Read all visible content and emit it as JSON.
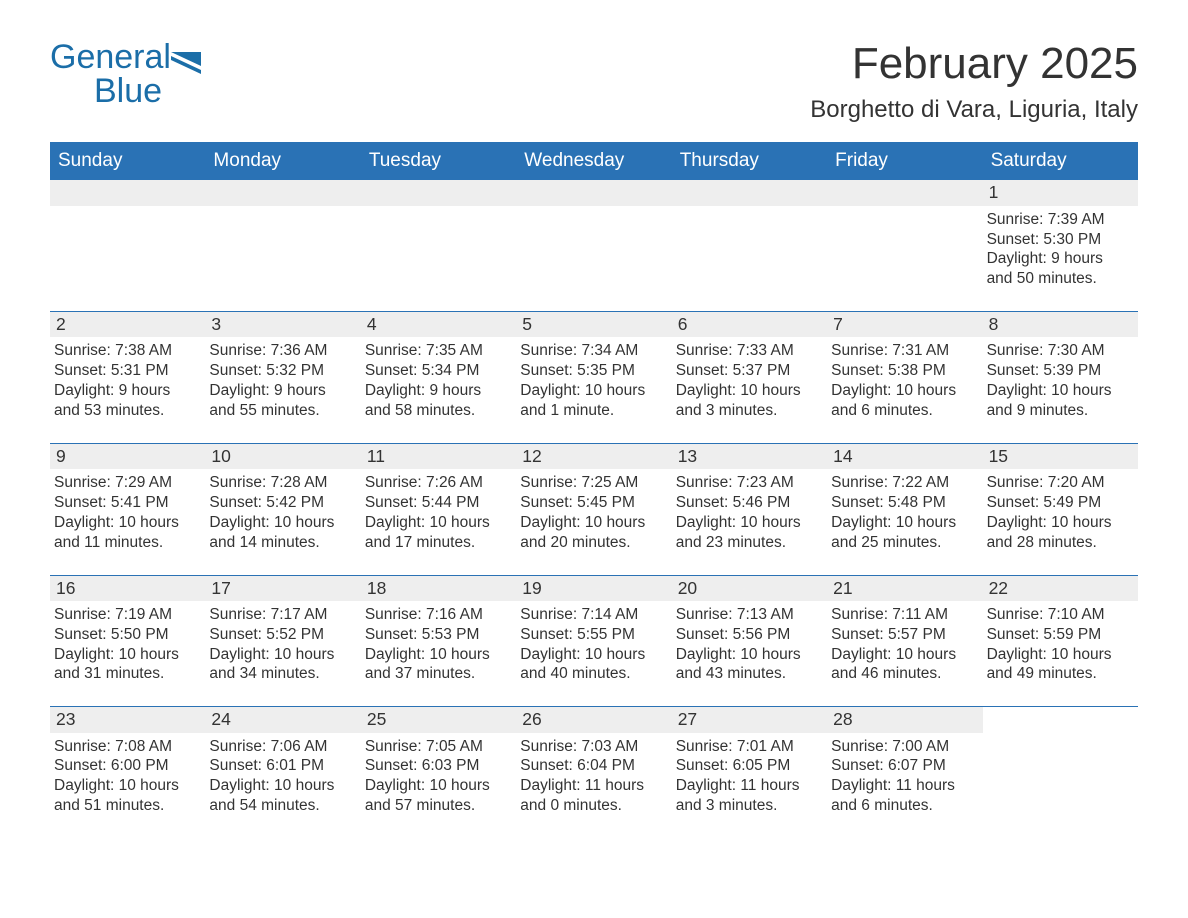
{
  "logo": {
    "text1": "General",
    "text2": "Blue",
    "accent_color": "#1b6ea8"
  },
  "title": "February 2025",
  "location": "Borghetto di Vara, Liguria, Italy",
  "colors": {
    "header_bg": "#2a72b5",
    "header_text": "#ffffff",
    "row_border": "#2a72b5",
    "daynum_bg": "#eeeeee",
    "body_text": "#333333",
    "page_bg": "#ffffff"
  },
  "weekdays": [
    "Sunday",
    "Monday",
    "Tuesday",
    "Wednesday",
    "Thursday",
    "Friday",
    "Saturday"
  ],
  "weeks": [
    [
      {
        "empty": true
      },
      {
        "empty": true
      },
      {
        "empty": true
      },
      {
        "empty": true
      },
      {
        "empty": true
      },
      {
        "empty": true
      },
      {
        "num": "1",
        "sunrise": "Sunrise: 7:39 AM",
        "sunset": "Sunset: 5:30 PM",
        "daylight": "Daylight: 9 hours and 50 minutes."
      }
    ],
    [
      {
        "num": "2",
        "sunrise": "Sunrise: 7:38 AM",
        "sunset": "Sunset: 5:31 PM",
        "daylight": "Daylight: 9 hours and 53 minutes."
      },
      {
        "num": "3",
        "sunrise": "Sunrise: 7:36 AM",
        "sunset": "Sunset: 5:32 PM",
        "daylight": "Daylight: 9 hours and 55 minutes."
      },
      {
        "num": "4",
        "sunrise": "Sunrise: 7:35 AM",
        "sunset": "Sunset: 5:34 PM",
        "daylight": "Daylight: 9 hours and 58 minutes."
      },
      {
        "num": "5",
        "sunrise": "Sunrise: 7:34 AM",
        "sunset": "Sunset: 5:35 PM",
        "daylight": "Daylight: 10 hours and 1 minute."
      },
      {
        "num": "6",
        "sunrise": "Sunrise: 7:33 AM",
        "sunset": "Sunset: 5:37 PM",
        "daylight": "Daylight: 10 hours and 3 minutes."
      },
      {
        "num": "7",
        "sunrise": "Sunrise: 7:31 AM",
        "sunset": "Sunset: 5:38 PM",
        "daylight": "Daylight: 10 hours and 6 minutes."
      },
      {
        "num": "8",
        "sunrise": "Sunrise: 7:30 AM",
        "sunset": "Sunset: 5:39 PM",
        "daylight": "Daylight: 10 hours and 9 minutes."
      }
    ],
    [
      {
        "num": "9",
        "sunrise": "Sunrise: 7:29 AM",
        "sunset": "Sunset: 5:41 PM",
        "daylight": "Daylight: 10 hours and 11 minutes."
      },
      {
        "num": "10",
        "sunrise": "Sunrise: 7:28 AM",
        "sunset": "Sunset: 5:42 PM",
        "daylight": "Daylight: 10 hours and 14 minutes."
      },
      {
        "num": "11",
        "sunrise": "Sunrise: 7:26 AM",
        "sunset": "Sunset: 5:44 PM",
        "daylight": "Daylight: 10 hours and 17 minutes."
      },
      {
        "num": "12",
        "sunrise": "Sunrise: 7:25 AM",
        "sunset": "Sunset: 5:45 PM",
        "daylight": "Daylight: 10 hours and 20 minutes."
      },
      {
        "num": "13",
        "sunrise": "Sunrise: 7:23 AM",
        "sunset": "Sunset: 5:46 PM",
        "daylight": "Daylight: 10 hours and 23 minutes."
      },
      {
        "num": "14",
        "sunrise": "Sunrise: 7:22 AM",
        "sunset": "Sunset: 5:48 PM",
        "daylight": "Daylight: 10 hours and 25 minutes."
      },
      {
        "num": "15",
        "sunrise": "Sunrise: 7:20 AM",
        "sunset": "Sunset: 5:49 PM",
        "daylight": "Daylight: 10 hours and 28 minutes."
      }
    ],
    [
      {
        "num": "16",
        "sunrise": "Sunrise: 7:19 AM",
        "sunset": "Sunset: 5:50 PM",
        "daylight": "Daylight: 10 hours and 31 minutes."
      },
      {
        "num": "17",
        "sunrise": "Sunrise: 7:17 AM",
        "sunset": "Sunset: 5:52 PM",
        "daylight": "Daylight: 10 hours and 34 minutes."
      },
      {
        "num": "18",
        "sunrise": "Sunrise: 7:16 AM",
        "sunset": "Sunset: 5:53 PM",
        "daylight": "Daylight: 10 hours and 37 minutes."
      },
      {
        "num": "19",
        "sunrise": "Sunrise: 7:14 AM",
        "sunset": "Sunset: 5:55 PM",
        "daylight": "Daylight: 10 hours and 40 minutes."
      },
      {
        "num": "20",
        "sunrise": "Sunrise: 7:13 AM",
        "sunset": "Sunset: 5:56 PM",
        "daylight": "Daylight: 10 hours and 43 minutes."
      },
      {
        "num": "21",
        "sunrise": "Sunrise: 7:11 AM",
        "sunset": "Sunset: 5:57 PM",
        "daylight": "Daylight: 10 hours and 46 minutes."
      },
      {
        "num": "22",
        "sunrise": "Sunrise: 7:10 AM",
        "sunset": "Sunset: 5:59 PM",
        "daylight": "Daylight: 10 hours and 49 minutes."
      }
    ],
    [
      {
        "num": "23",
        "sunrise": "Sunrise: 7:08 AM",
        "sunset": "Sunset: 6:00 PM",
        "daylight": "Daylight: 10 hours and 51 minutes."
      },
      {
        "num": "24",
        "sunrise": "Sunrise: 7:06 AM",
        "sunset": "Sunset: 6:01 PM",
        "daylight": "Daylight: 10 hours and 54 minutes."
      },
      {
        "num": "25",
        "sunrise": "Sunrise: 7:05 AM",
        "sunset": "Sunset: 6:03 PM",
        "daylight": "Daylight: 10 hours and 57 minutes."
      },
      {
        "num": "26",
        "sunrise": "Sunrise: 7:03 AM",
        "sunset": "Sunset: 6:04 PM",
        "daylight": "Daylight: 11 hours and 0 minutes."
      },
      {
        "num": "27",
        "sunrise": "Sunrise: 7:01 AM",
        "sunset": "Sunset: 6:05 PM",
        "daylight": "Daylight: 11 hours and 3 minutes."
      },
      {
        "num": "28",
        "sunrise": "Sunrise: 7:00 AM",
        "sunset": "Sunset: 6:07 PM",
        "daylight": "Daylight: 11 hours and 6 minutes."
      },
      {
        "empty": true,
        "nobar": true
      }
    ]
  ]
}
